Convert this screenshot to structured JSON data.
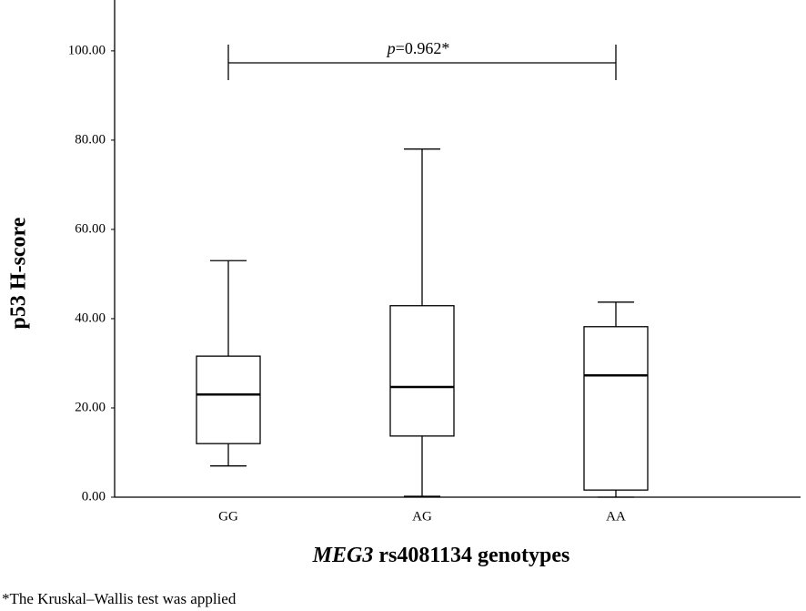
{
  "chart_data": {
    "type": "box",
    "y_label": "p53 H-score",
    "x_label": [
      "MEG3",
      " rs4081134 genotypes"
    ],
    "annotation": [
      "p",
      "=0.962*"
    ],
    "footnote": "*The Kruskal–Wallis test was applied",
    "categories": [
      "GG",
      "AG",
      "AA"
    ],
    "boxes": [
      {
        "min": 7,
        "q1": 12,
        "median": 23,
        "q3": 31.6,
        "max": 53
      },
      {
        "min": 0.2,
        "q1": 13.7,
        "median": 24.7,
        "q3": 42.9,
        "max": 78
      },
      {
        "min": 0,
        "q1": 1.6,
        "median": 27.3,
        "q3": 38.2,
        "max": 43.7
      }
    ],
    "color": "#000000",
    "ylim": [
      0,
      111.4
    ],
    "yticks": [
      {
        "value": 0,
        "label": "0.00"
      },
      {
        "value": 20,
        "label": "20.00"
      },
      {
        "value": 40,
        "label": "40.00"
      },
      {
        "value": 60,
        "label": "60.00"
      },
      {
        "value": 80,
        "label": "80.00"
      },
      {
        "value": 100,
        "label": "100.00"
      }
    ]
  }
}
